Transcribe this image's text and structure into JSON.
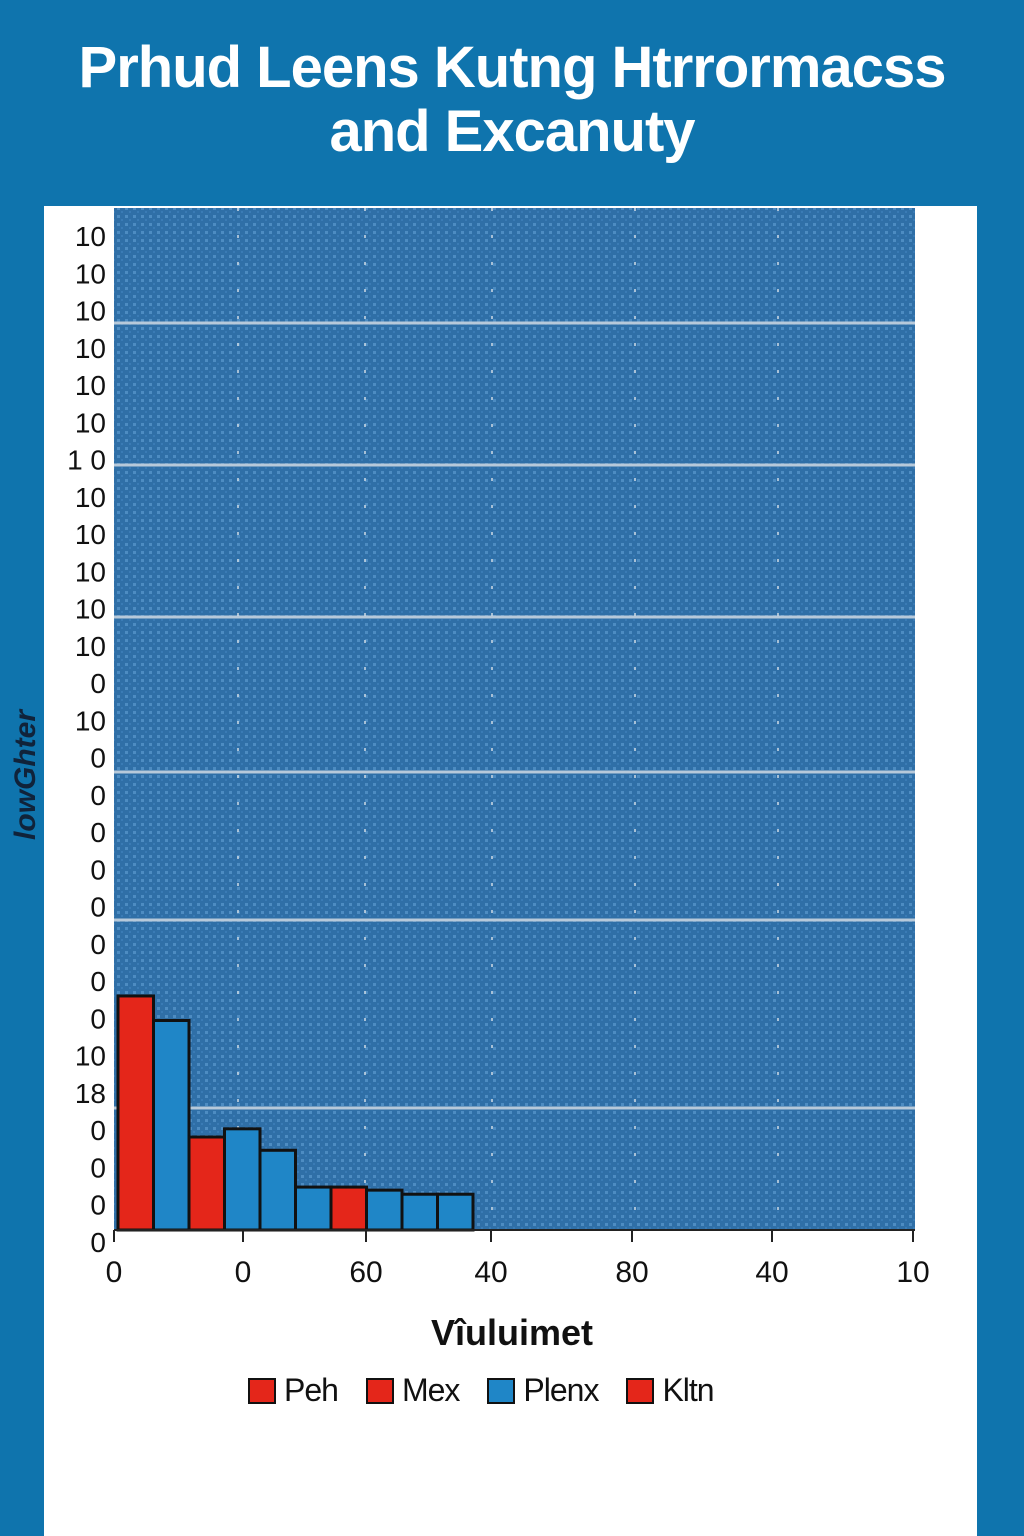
{
  "title_lines": [
    "Prhud Leens Kutng Htrrormacss",
    "and Excanuty"
  ],
  "chart_data": {
    "type": "bar",
    "title": "Prhud Leens Kutng Htrrormacss and Excanuty",
    "xlabel": "Vîuluimet",
    "ylabel": "lowGhter",
    "x_tick_labels": [
      "0",
      "0",
      "60",
      "40",
      "80",
      "40",
      "10"
    ],
    "y_tick_labels": [
      "10",
      "10",
      "10",
      "10",
      "10",
      "10",
      "1 0",
      "10",
      "10",
      "10",
      "10",
      "10",
      "0",
      "10",
      "0",
      "0",
      "0",
      "0",
      "0",
      "0",
      "0",
      "0",
      "10",
      "18",
      "0",
      "0",
      "0",
      "0"
    ],
    "legend": [
      {
        "name": "Peh",
        "color": "#e4261a"
      },
      {
        "name": "Mex",
        "color": "#e4261a"
      },
      {
        "name": "Plenx",
        "color": "#1f86c7"
      },
      {
        "name": "Kltn",
        "color": "#e4261a"
      }
    ],
    "bars": [
      {
        "height_fraction": 0.229,
        "color": "#e4261a"
      },
      {
        "height_fraction": 0.205,
        "color": "#1f86c7"
      },
      {
        "height_fraction": 0.091,
        "color": "#e4261a"
      },
      {
        "height_fraction": 0.099,
        "color": "#1f86c7"
      },
      {
        "height_fraction": 0.078,
        "color": "#1f86c7"
      },
      {
        "height_fraction": 0.042,
        "color": "#1f86c7"
      },
      {
        "height_fraction": 0.042,
        "color": "#e4261a"
      },
      {
        "height_fraction": 0.039,
        "color": "#1f86c7"
      },
      {
        "height_fraction": 0.035,
        "color": "#1f86c7"
      },
      {
        "height_fraction": 0.035,
        "color": "#1f86c7"
      }
    ],
    "grid": true,
    "legend_position": "bottom"
  }
}
